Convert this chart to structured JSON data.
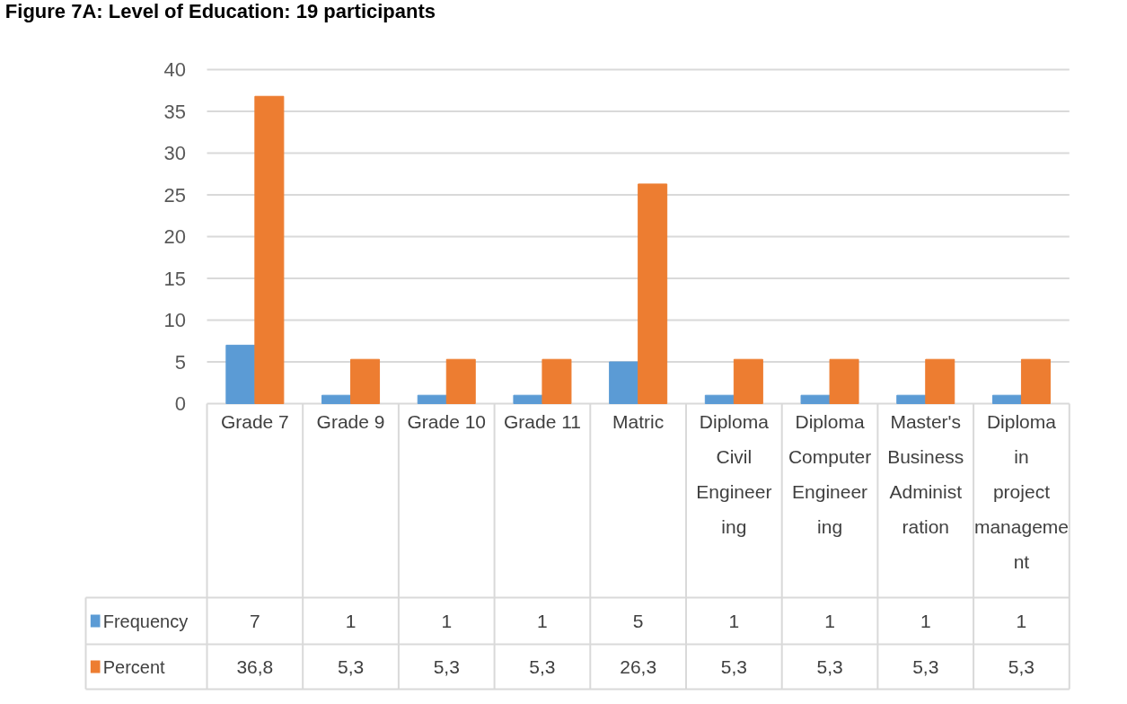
{
  "chart_data": {
    "type": "bar",
    "title": "Figure 7A: Level of Education: 19 participants",
    "categories": [
      "Grade 7",
      "Grade 9",
      "Grade 10",
      "Grade 11",
      "Matric",
      "Diploma Civil Engineering",
      "Diploma Computer Engineering",
      "Master's Business Administration",
      "Diploma in project management"
    ],
    "series": [
      {
        "name": "Frequency",
        "color": "#5b9bd5",
        "values": [
          7,
          1,
          1,
          1,
          5,
          1,
          1,
          1,
          1
        ],
        "value_labels": [
          "7",
          "1",
          "1",
          "1",
          "5",
          "1",
          "1",
          "1",
          "1"
        ]
      },
      {
        "name": "Percent",
        "color": "#ed7d31",
        "values": [
          36.8,
          5.3,
          5.3,
          5.3,
          26.3,
          5.3,
          5.3,
          5.3,
          5.3
        ],
        "value_labels": [
          "36,8",
          "5,3",
          "5,3",
          "5,3",
          "26,3",
          "5,3",
          "5,3",
          "5,3",
          "5,3"
        ]
      }
    ],
    "ylim": [
      0,
      40
    ],
    "yticks": [
      0,
      5,
      10,
      15,
      20,
      25,
      30,
      35,
      40
    ],
    "grid": "y",
    "legend": "bottom"
  }
}
